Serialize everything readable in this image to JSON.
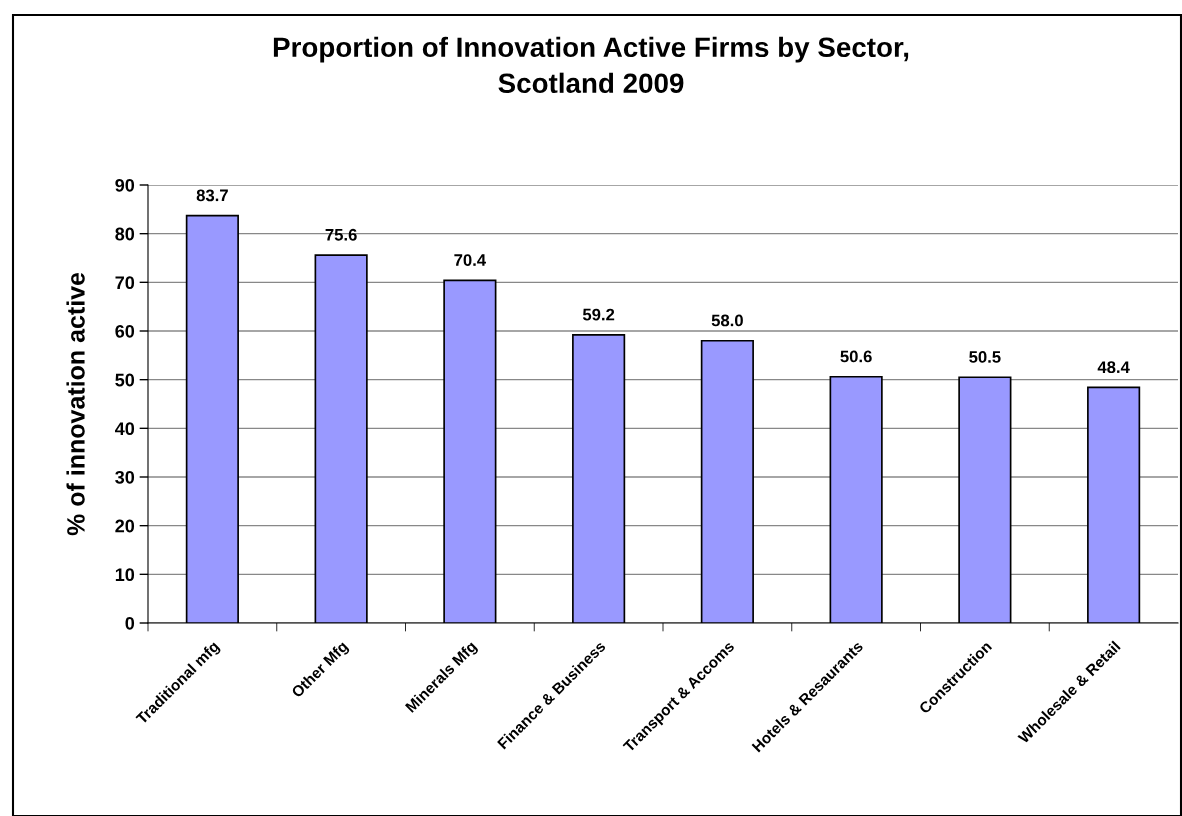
{
  "chart_data": {
    "type": "bar",
    "title": "Proportion of Innovation Active Firms by Sector,\nScotland 2009",
    "ylabel": "% of innovation active",
    "categories": [
      "Traditional mfg",
      "Other Mfg",
      "Minerals Mfg",
      "Finance & Business",
      "Transport & Accoms",
      "Hotels & Resaurants",
      "Construction",
      "Wholesale & Retail"
    ],
    "values": [
      83.7,
      75.6,
      70.4,
      59.2,
      58.0,
      50.6,
      50.5,
      48.4
    ],
    "value_labels": [
      "83.7",
      "75.6",
      "70.4",
      "59.2",
      "58.0",
      "50.6",
      "50.5",
      "48.4"
    ],
    "color": "#9999ff",
    "ylim": [
      0,
      90
    ],
    "yticks": [
      0,
      10,
      20,
      30,
      40,
      50,
      60,
      70,
      80,
      90
    ],
    "grid": "y"
  }
}
